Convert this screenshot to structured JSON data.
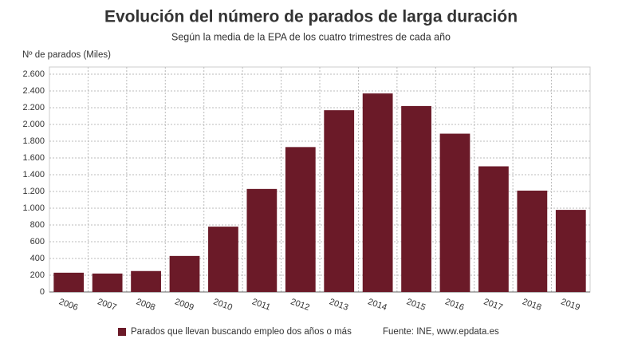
{
  "chart_data": {
    "type": "bar",
    "title": "Evolución del número de parados de larga duración",
    "subtitle": "Según la media de la EPA de los cuatro trimestres de cada año",
    "y_axis_label": "Nº de parados (Miles)",
    "categories": [
      "2006",
      "2007",
      "2008",
      "2009",
      "2010",
      "2011",
      "2012",
      "2013",
      "2014",
      "2015",
      "2016",
      "2017",
      "2018",
      "2019"
    ],
    "series": [
      {
        "name": "Parados que llevan buscando empleo dos años o más",
        "color": "#6b1a28",
        "values": [
          230,
          220,
          250,
          430,
          780,
          1230,
          1730,
          2170,
          2370,
          2220,
          1890,
          1500,
          1210,
          980
        ]
      }
    ],
    "ylim": [
      0,
      2600
    ],
    "yticks": [
      0,
      200,
      400,
      600,
      800,
      {
        "value": 1000,
        "label": "1.000"
      },
      {
        "value": 1200,
        "label": "1.200"
      },
      {
        "value": 1400,
        "label": "1.400"
      },
      {
        "value": 1600,
        "label": "1.600"
      },
      {
        "value": 1800,
        "label": "1.800"
      },
      {
        "value": 2000,
        "label": "2.000"
      },
      {
        "value": 2200,
        "label": "2.200"
      },
      {
        "value": 2400,
        "label": "2.400"
      },
      {
        "value": 2600,
        "label": "2.600"
      }
    ],
    "grid": true,
    "source": "Fuente: INE, www.epdata.es"
  }
}
